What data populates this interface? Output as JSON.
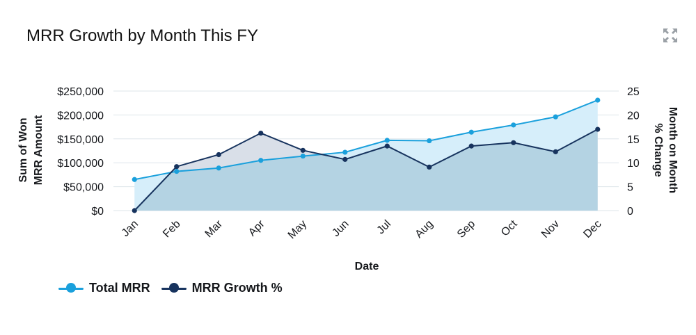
{
  "title": "MRR Growth by Month This FY",
  "icons": {
    "expand": "expand-icon"
  },
  "colors": {
    "total_line": "#1aa0dc",
    "total_fill": "#d6eefa",
    "growth_line": "#17335e",
    "growth_fill": "#b4d3e3",
    "growth_fill_above": "#d9dfe8",
    "grid": "#dde5ea"
  },
  "legend": [
    {
      "label": "Total MRR",
      "color": "#1aa0dc"
    },
    {
      "label": "MRR Growth %",
      "color": "#17335e"
    }
  ],
  "chart_data": {
    "type": "area",
    "xlabel": "Date",
    "ylabel": "Sum of Won MRR Amount",
    "ylabel_lines": [
      "Sum of Won",
      "MRR Amount"
    ],
    "y2label": "Month on Month % Change",
    "y2label_lines": [
      "Month on Month",
      "% Change"
    ],
    "categories": [
      "Jan",
      "Feb",
      "Mar",
      "Apr",
      "May",
      "Jun",
      "Jul",
      "Aug",
      "Sep",
      "Oct",
      "Nov",
      "Dec"
    ],
    "ylim": [
      0,
      250000
    ],
    "y_ticks": [
      "$0",
      "$50,000",
      "$100,000",
      "$150,000",
      "$200,000",
      "$250,000"
    ],
    "y2lim": [
      0,
      25
    ],
    "y2_ticks": [
      "0",
      "5",
      "10",
      "15",
      "20",
      "25"
    ],
    "grid": true,
    "legend_position": "bottom-left",
    "series": [
      {
        "name": "Total MRR",
        "axis": "left",
        "values": [
          65000,
          82000,
          89000,
          105000,
          114000,
          122000,
          147000,
          146000,
          164000,
          179000,
          196000,
          231000
        ]
      },
      {
        "name": "MRR Growth %",
        "axis": "right",
        "values": [
          0,
          9.2,
          11.7,
          16.2,
          12.6,
          10.7,
          13.5,
          9.1,
          13.5,
          14.2,
          12.3,
          17.0
        ]
      }
    ]
  }
}
